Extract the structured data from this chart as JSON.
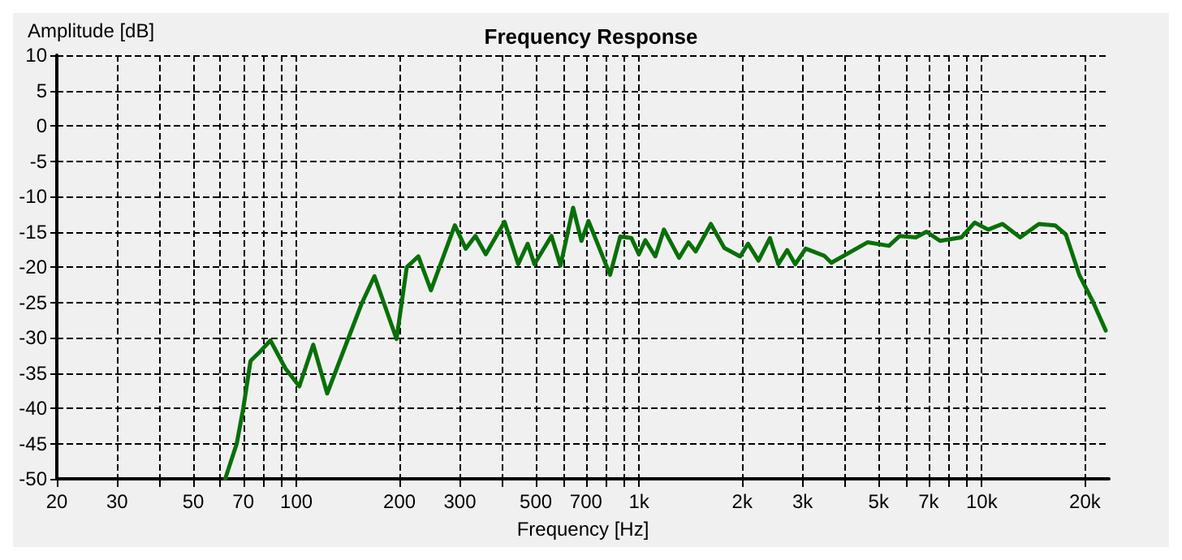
{
  "chart_data": {
    "type": "line",
    "title": "Frequency Response",
    "xlabel": "Frequency [Hz]",
    "ylabel": "Amplitude [dB]",
    "log": "x",
    "grid": true,
    "marker": "none",
    "line_style": "solid",
    "xlim": [
      20,
      23500
    ],
    "xticks": [
      20,
      30,
      {
        "value": 40,
        "label": null
      },
      50,
      {
        "value": 60,
        "label": null
      },
      70,
      {
        "value": 80,
        "label": null
      },
      {
        "value": 90,
        "label": null
      },
      100,
      200,
      300,
      {
        "value": 400,
        "label": null
      },
      500,
      {
        "value": 600,
        "label": null
      },
      700,
      {
        "value": 800,
        "label": null
      },
      {
        "value": 900,
        "label": null
      },
      {
        "value": 1000,
        "label": "1k"
      },
      {
        "value": 2000,
        "label": "2k"
      },
      {
        "value": 3000,
        "label": "3k"
      },
      {
        "value": 4000,
        "label": null
      },
      {
        "value": 5000,
        "label": "5k"
      },
      {
        "value": 6000,
        "label": null
      },
      {
        "value": 7000,
        "label": "7k"
      },
      {
        "value": 8000,
        "label": null
      },
      {
        "value": 9000,
        "label": null
      },
      {
        "value": 10000,
        "label": "10k"
      },
      {
        "value": 20000,
        "label": "20k"
      }
    ],
    "ylim": [
      -50,
      10
    ],
    "yticks": [
      -50,
      -45,
      -40,
      -35,
      -30,
      -25,
      -20,
      -15,
      -10,
      -5,
      0,
      5,
      10
    ],
    "series": [
      {
        "color": "#087008",
        "x": [
          62,
          67,
          70,
          73.5,
          79,
          84,
          93,
          102,
          112,
          123,
          141,
          155,
          169,
          196,
          210,
          227,
          247,
          290,
          312,
          333,
          357,
          405,
          444,
          473,
          495,
          555,
          590,
          642,
          679,
          712,
          823,
          881,
          950,
          999,
          1043,
          1115,
          1182,
          1308,
          1394,
          1463,
          1620,
          1773,
          1972,
          2080,
          2231,
          2409,
          2549,
          2705,
          2855,
          3064,
          3468,
          3640,
          4640,
          5360,
          5760,
          6420,
          6900,
          7550,
          8720,
          9540,
          10440,
          11500,
          12940,
          14680,
          16370,
          17600,
          19250,
          21050,
          23000
        ],
        "values": [
          -50,
          -45,
          -40,
          -33.3,
          -31.8,
          -30.4,
          -34.4,
          -36.9,
          -31,
          -37.9,
          -30.4,
          -25.2,
          -21.3,
          -30.2,
          -20,
          -18.5,
          -23.3,
          -14.1,
          -17.4,
          -15.6,
          -18.2,
          -13.6,
          -19.6,
          -16.7,
          -19.6,
          -15.6,
          -19.8,
          -11.6,
          -16.3,
          -13.5,
          -21.1,
          -15.7,
          -15.9,
          -18.2,
          -16.2,
          -18.5,
          -14.7,
          -18.7,
          -16.5,
          -17.8,
          -13.9,
          -17.3,
          -18.5,
          -16.7,
          -19.1,
          -15.9,
          -19.6,
          -17.6,
          -19.6,
          -17.4,
          -18.4,
          -19.4,
          -16.5,
          -17,
          -15.6,
          -15.8,
          -15,
          -16.3,
          -15.8,
          -13.7,
          -14.7,
          -13.9,
          -15.8,
          -13.9,
          -14.1,
          -15.4,
          -21.1,
          -24.8,
          -29
        ]
      }
    ]
  }
}
